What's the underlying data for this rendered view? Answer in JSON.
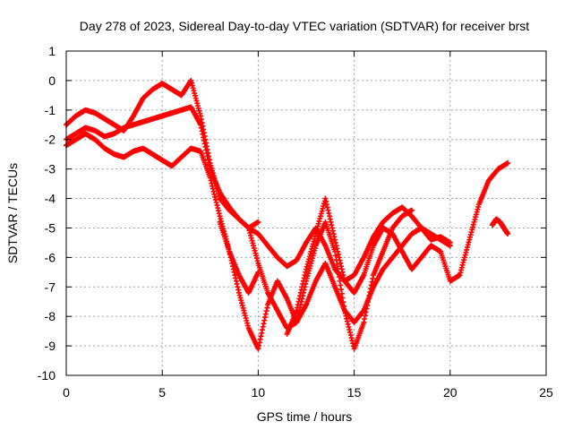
{
  "chart_data": {
    "type": "scatter",
    "title": "Day 278 of 2023, Sidereal Day-to-day VTEC variation (SDTVAR) for receiver brst",
    "xlabel": "GPS time / hours",
    "ylabel": "SDTVAR / TECUs",
    "xlim": [
      0,
      25
    ],
    "ylim": [
      -10,
      1
    ],
    "xticks": [
      "0",
      "5",
      "10",
      "15",
      "20",
      "25"
    ],
    "yticks": [
      "1",
      "0",
      "-1",
      "-2",
      "-3",
      "-4",
      "-5",
      "-6",
      "-7",
      "-8",
      "-9",
      "-10"
    ],
    "grid": true,
    "marker": "plus",
    "color": "#ff0000",
    "series": [
      {
        "x": [
          0.0,
          0.5,
          1.0,
          1.5,
          2.0,
          2.5,
          3.0,
          3.5,
          4.0,
          4.5,
          5.0,
          5.5,
          6.0,
          6.5,
          7.0,
          7.5,
          8.0,
          8.5,
          9.0,
          9.5,
          10.0,
          10.5,
          11.0,
          11.5,
          12.0,
          12.5,
          13.0,
          13.5,
          14.0,
          14.5,
          15.0,
          15.5,
          16.0,
          16.5,
          17.0,
          17.5,
          18.0,
          18.5,
          19.0,
          19.5,
          20.0
        ],
        "y": [
          -2.0,
          -1.8,
          -1.6,
          -1.7,
          -1.9,
          -1.8,
          -1.6,
          -1.5,
          -1.4,
          -1.3,
          -1.2,
          -1.1,
          -1.0,
          -0.9,
          -1.5,
          -3.0,
          -3.8,
          -4.3,
          -4.7,
          -5.0,
          -5.2,
          -5.6,
          -6.0,
          -6.3,
          -6.1,
          -5.5,
          -5.0,
          -5.6,
          -6.4,
          -6.8,
          -6.6,
          -6.0,
          -5.3,
          -4.8,
          -4.5,
          -4.3,
          -4.6,
          -5.0,
          -5.4,
          -5.3,
          -5.5
        ]
      },
      {
        "x": [
          0.0,
          0.5,
          1.0,
          1.5,
          2.0,
          2.5,
          3.0,
          3.5,
          4.0,
          4.5,
          5.0,
          5.5,
          6.0,
          6.5,
          7.0,
          7.5,
          8.0,
          8.5,
          9.0,
          9.5,
          10.0
        ],
        "y": [
          -1.5,
          -1.2,
          -1.0,
          -1.1,
          -1.3,
          -1.5,
          -1.7,
          -1.2,
          -0.6,
          -0.3,
          -0.1,
          -0.3,
          -0.5,
          0.0,
          -1.2,
          -2.8,
          -4.0,
          -4.4,
          -4.7,
          -5.0,
          -4.8
        ]
      },
      {
        "x": [
          0.0,
          0.5,
          1.0,
          1.5,
          2.0,
          2.5,
          3.0,
          3.5,
          4.0,
          4.5,
          5.0,
          5.5,
          6.0,
          6.5,
          7.0,
          7.5,
          8.0,
          8.5,
          9.0,
          9.5,
          10.0
        ],
        "y": [
          -2.2,
          -2.0,
          -1.8,
          -2.0,
          -2.3,
          -2.5,
          -2.6,
          -2.4,
          -2.3,
          -2.5,
          -2.7,
          -2.9,
          -2.6,
          -2.3,
          -2.4,
          -3.3,
          -4.6,
          -5.8,
          -6.6,
          -7.2,
          -6.5
        ]
      },
      {
        "x": [
          9.5,
          10.0,
          10.5,
          11.0,
          11.5,
          12.0,
          12.5,
          13.0,
          13.5,
          14.0,
          14.5,
          15.0,
          15.5,
          16.0,
          16.5,
          17.0,
          17.5,
          18.0,
          18.5,
          19.0,
          19.5,
          20.0
        ],
        "y": [
          -5.0,
          -6.2,
          -7.2,
          -7.8,
          -8.4,
          -8.2,
          -7.6,
          -6.8,
          -6.2,
          -7.0,
          -7.8,
          -8.2,
          -7.8,
          -7.0,
          -6.4,
          -6.0,
          -5.6,
          -5.2,
          -5.0,
          -5.2,
          -5.4,
          -5.6
        ]
      },
      {
        "x": [
          8.0,
          8.5,
          9.0,
          9.5,
          10.0,
          10.5,
          11.0,
          11.5,
          12.0,
          12.5,
          13.0,
          13.5,
          14.0,
          14.5,
          15.0,
          15.5,
          16.0,
          16.5,
          17.0,
          17.5,
          18.0
        ],
        "y": [
          -4.8,
          -5.8,
          -7.2,
          -8.4,
          -9.1,
          -7.6,
          -6.8,
          -7.4,
          -8.2,
          -6.8,
          -5.6,
          -4.8,
          -5.8,
          -7.8,
          -9.1,
          -8.2,
          -6.6,
          -5.8,
          -5.0,
          -4.6,
          -4.4
        ]
      },
      {
        "x": [
          11.5,
          12.0,
          12.5,
          13.0,
          13.5,
          14.0,
          14.5,
          15.0,
          15.5,
          16.0,
          16.5,
          17.0,
          17.5,
          18.0,
          18.5,
          19.0,
          19.5,
          20.0,
          20.5,
          21.0,
          21.5,
          22.0,
          22.5,
          23.0
        ],
        "y": [
          -8.6,
          -7.8,
          -6.4,
          -5.2,
          -4.0,
          -5.4,
          -6.8,
          -7.2,
          -6.6,
          -5.6,
          -5.0,
          -5.2,
          -5.8,
          -6.4,
          -6.0,
          -5.6,
          -5.8,
          -6.8,
          -6.6,
          -5.4,
          -4.2,
          -3.4,
          -3.0,
          -2.8
        ]
      },
      {
        "x": [
          22.2,
          22.4,
          22.6,
          22.8,
          23.0
        ],
        "y": [
          -4.9,
          -4.7,
          -4.8,
          -5.0,
          -5.2
        ]
      }
    ]
  }
}
